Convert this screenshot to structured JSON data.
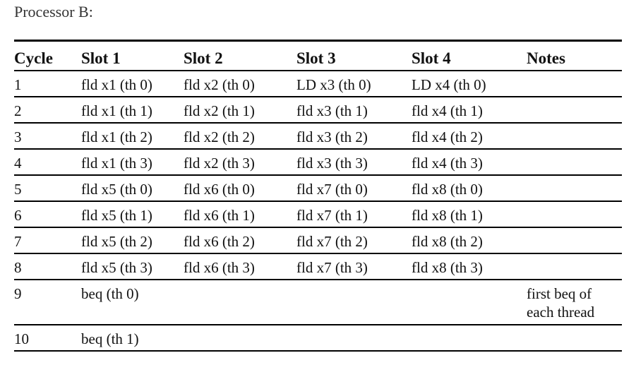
{
  "title": "Processor B:",
  "table": {
    "header": [
      "Cycle",
      "Slot 1",
      "Slot 2",
      "Slot 3",
      "Slot 4",
      "Notes"
    ],
    "rows": [
      [
        "1",
        "fld x1 (th 0)",
        "fld x2 (th 0)",
        "LD x3 (th 0)",
        "LD x4 (th 0)",
        null
      ],
      [
        "2",
        "fld x1 (th 1)",
        "fld x2 (th 1)",
        "fld x3 (th 1)",
        "fld x4 (th 1)",
        null
      ],
      [
        "3",
        "fld x1 (th 2)",
        "fld x2 (th 2)",
        "fld x3 (th 2)",
        "fld x4 (th 2)",
        null
      ],
      [
        "4",
        "fld x1 (th 3)",
        "fld x2 (th 3)",
        "fld x3 (th 3)",
        "fld x4 (th 3)",
        null
      ],
      [
        "5",
        "fld x5 (th 0)",
        "fld x6 (th 0)",
        "fld x7 (th 0)",
        "fld x8 (th 0)",
        null
      ],
      [
        "6",
        "fld x5 (th 1)",
        "fld x6 (th 1)",
        "fld x7 (th 1)",
        "fld x8 (th 1)",
        null
      ],
      [
        "7",
        "fld x5 (th 2)",
        "fld x6 (th 2)",
        "fld x7 (th 2)",
        "fld x8 (th 2)",
        null
      ],
      [
        "8",
        "fld x5 (th 3)",
        "fld x6 (th 3)",
        "fld x7 (th 3)",
        "fld x8 (th 3)",
        null
      ],
      [
        "9",
        "beq (th 0)",
        null,
        null,
        null,
        "first beq of each thread"
      ],
      [
        "10",
        "beq (th 1)",
        null,
        null,
        null,
        null
      ]
    ]
  }
}
